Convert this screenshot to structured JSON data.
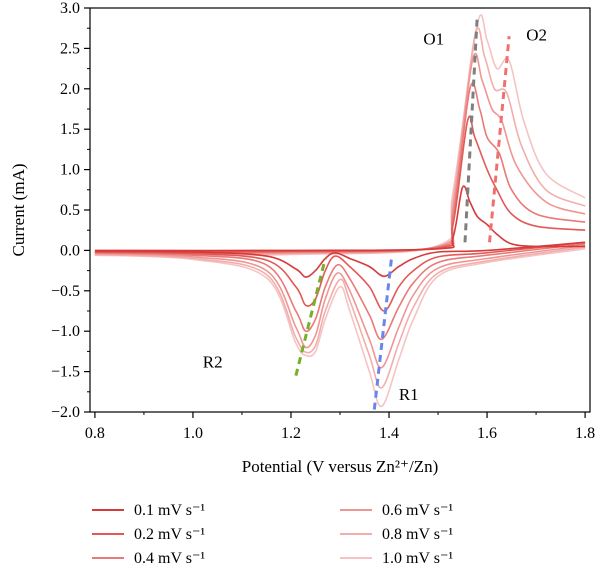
{
  "chart_data": {
    "type": "line",
    "xlabel": "Potential (V versus Zn²⁺/Zn)",
    "ylabel": "Current (mA)",
    "xlim": [
      0.79,
      1.81
    ],
    "ylim": [
      -2.0,
      3.0
    ],
    "xticks": [
      "0.8",
      "1.0",
      "1.2",
      "1.4",
      "1.6",
      "1.8"
    ],
    "xtick_values": [
      0.8,
      1.0,
      1.2,
      1.4,
      1.6,
      1.8
    ],
    "yticks": [
      "3.0",
      "2.5",
      "2.0",
      "1.5",
      "1.0",
      "0.5",
      "0.0",
      "−0.5",
      "−1.0",
      "−1.5",
      "−2.0"
    ],
    "ytick_values": [
      3.0,
      2.5,
      2.0,
      1.5,
      1.0,
      0.5,
      0.0,
      -0.5,
      -1.0,
      -1.5,
      -2.0
    ],
    "legend_position": "bottom",
    "series": [
      {
        "name": "0.1 mV s⁻¹",
        "color": "#d63a3a",
        "anodic": [
          [
            0.8,
            0.0
          ],
          [
            1.2,
            0.0
          ],
          [
            1.5,
            0.02
          ],
          [
            1.53,
            0.15
          ],
          [
            1.55,
            0.78
          ],
          [
            1.565,
            0.6
          ],
          [
            1.58,
            0.42
          ],
          [
            1.6,
            0.32
          ],
          [
            1.62,
            0.2
          ],
          [
            1.65,
            0.08
          ],
          [
            1.7,
            0.05
          ],
          [
            1.8,
            0.05
          ]
        ],
        "cathodic": [
          [
            1.8,
            0.1
          ],
          [
            1.6,
            0.0
          ],
          [
            1.5,
            -0.02
          ],
          [
            1.45,
            -0.1
          ],
          [
            1.42,
            -0.2
          ],
          [
            1.39,
            -0.32
          ],
          [
            1.36,
            -0.2
          ],
          [
            1.32,
            -0.1
          ],
          [
            1.29,
            -0.03
          ],
          [
            1.27,
            -0.1
          ],
          [
            1.25,
            -0.25
          ],
          [
            1.23,
            -0.33
          ],
          [
            1.21,
            -0.23
          ],
          [
            1.15,
            -0.07
          ],
          [
            1.0,
            -0.02
          ],
          [
            0.8,
            -0.01
          ]
        ]
      },
      {
        "name": "0.2 mV s⁻¹",
        "color": "#e15a57",
        "anodic": [
          [
            0.8,
            -0.02
          ],
          [
            1.2,
            -0.01
          ],
          [
            1.5,
            0.03
          ],
          [
            1.53,
            0.3
          ],
          [
            1.56,
            1.6
          ],
          [
            1.575,
            1.4
          ],
          [
            1.6,
            1.0
          ],
          [
            1.62,
            0.75
          ],
          [
            1.65,
            0.45
          ],
          [
            1.7,
            0.3
          ],
          [
            1.8,
            0.25
          ]
        ],
        "cathodic": [
          [
            1.8,
            0.1
          ],
          [
            1.6,
            -0.03
          ],
          [
            1.5,
            -0.08
          ],
          [
            1.45,
            -0.25
          ],
          [
            1.42,
            -0.45
          ],
          [
            1.39,
            -0.75
          ],
          [
            1.36,
            -0.45
          ],
          [
            1.32,
            -0.2
          ],
          [
            1.29,
            -0.07
          ],
          [
            1.27,
            -0.25
          ],
          [
            1.25,
            -0.6
          ],
          [
            1.23,
            -0.68
          ],
          [
            1.21,
            -0.45
          ],
          [
            1.15,
            -0.12
          ],
          [
            1.0,
            -0.04
          ],
          [
            0.8,
            -0.02
          ]
        ]
      },
      {
        "name": "0.4 mV s⁻¹",
        "color": "#e87a78",
        "anodic": [
          [
            0.8,
            -0.03
          ],
          [
            1.2,
            -0.02
          ],
          [
            1.5,
            0.04
          ],
          [
            1.53,
            0.4
          ],
          [
            1.565,
            2.0
          ],
          [
            1.585,
            1.75
          ],
          [
            1.6,
            1.4
          ],
          [
            1.625,
            1.2
          ],
          [
            1.65,
            0.75
          ],
          [
            1.7,
            0.45
          ],
          [
            1.8,
            0.35
          ]
        ],
        "cathodic": [
          [
            1.8,
            0.08
          ],
          [
            1.6,
            -0.06
          ],
          [
            1.5,
            -0.15
          ],
          [
            1.45,
            -0.4
          ],
          [
            1.42,
            -0.7
          ],
          [
            1.385,
            -1.1
          ],
          [
            1.36,
            -0.8
          ],
          [
            1.32,
            -0.35
          ],
          [
            1.295,
            -0.18
          ],
          [
            1.27,
            -0.45
          ],
          [
            1.25,
            -0.85
          ],
          [
            1.23,
            -1.0
          ],
          [
            1.21,
            -0.75
          ],
          [
            1.15,
            -0.18
          ],
          [
            1.0,
            -0.06
          ],
          [
            0.8,
            -0.03
          ]
        ]
      },
      {
        "name": "0.6 mV s⁻¹",
        "color": "#ee9694",
        "anodic": [
          [
            0.8,
            -0.04
          ],
          [
            1.2,
            -0.03
          ],
          [
            1.5,
            0.05
          ],
          [
            1.53,
            0.5
          ],
          [
            1.57,
            2.35
          ],
          [
            1.59,
            2.1
          ],
          [
            1.61,
            1.75
          ],
          [
            1.63,
            1.6
          ],
          [
            1.66,
            1.05
          ],
          [
            1.72,
            0.6
          ],
          [
            1.8,
            0.45
          ]
        ],
        "cathodic": [
          [
            1.8,
            0.06
          ],
          [
            1.6,
            -0.1
          ],
          [
            1.5,
            -0.22
          ],
          [
            1.45,
            -0.55
          ],
          [
            1.42,
            -0.95
          ],
          [
            1.385,
            -1.45
          ],
          [
            1.36,
            -1.1
          ],
          [
            1.32,
            -0.5
          ],
          [
            1.295,
            -0.28
          ],
          [
            1.27,
            -0.6
          ],
          [
            1.25,
            -1.05
          ],
          [
            1.23,
            -1.2
          ],
          [
            1.21,
            -0.95
          ],
          [
            1.15,
            -0.25
          ],
          [
            1.0,
            -0.08
          ],
          [
            0.8,
            -0.04
          ]
        ]
      },
      {
        "name": "0.8 mV s⁻¹",
        "color": "#f2aeac",
        "anodic": [
          [
            0.8,
            -0.05
          ],
          [
            1.2,
            -0.04
          ],
          [
            1.5,
            0.05
          ],
          [
            1.53,
            0.6
          ],
          [
            1.575,
            2.65
          ],
          [
            1.595,
            2.4
          ],
          [
            1.615,
            2.0
          ],
          [
            1.64,
            1.95
          ],
          [
            1.67,
            1.3
          ],
          [
            1.72,
            0.75
          ],
          [
            1.8,
            0.55
          ]
        ],
        "cathodic": [
          [
            1.8,
            0.04
          ],
          [
            1.6,
            -0.13
          ],
          [
            1.5,
            -0.28
          ],
          [
            1.45,
            -0.7
          ],
          [
            1.42,
            -1.15
          ],
          [
            1.385,
            -1.7
          ],
          [
            1.36,
            -1.3
          ],
          [
            1.32,
            -0.62
          ],
          [
            1.3,
            -0.36
          ],
          [
            1.27,
            -0.75
          ],
          [
            1.25,
            -1.18
          ],
          [
            1.23,
            -1.26
          ],
          [
            1.21,
            -1.08
          ],
          [
            1.15,
            -0.3
          ],
          [
            1.0,
            -0.1
          ],
          [
            0.8,
            -0.05
          ]
        ]
      },
      {
        "name": "1.0 mV s⁻¹",
        "color": "#f5c4c2",
        "anodic": [
          [
            0.8,
            -0.06
          ],
          [
            1.2,
            -0.05
          ],
          [
            1.5,
            0.06
          ],
          [
            1.53,
            0.7
          ],
          [
            1.58,
            2.8
          ],
          [
            1.6,
            2.6
          ],
          [
            1.62,
            2.25
          ],
          [
            1.645,
            2.35
          ],
          [
            1.675,
            1.6
          ],
          [
            1.72,
            0.95
          ],
          [
            1.8,
            0.65
          ]
        ],
        "cathodic": [
          [
            1.8,
            0.02
          ],
          [
            1.6,
            -0.15
          ],
          [
            1.5,
            -0.32
          ],
          [
            1.45,
            -0.85
          ],
          [
            1.42,
            -1.35
          ],
          [
            1.385,
            -1.93
          ],
          [
            1.36,
            -1.5
          ],
          [
            1.32,
            -0.75
          ],
          [
            1.3,
            -0.45
          ],
          [
            1.27,
            -0.85
          ],
          [
            1.25,
            -1.25
          ],
          [
            1.23,
            -1.3
          ],
          [
            1.21,
            -1.15
          ],
          [
            1.15,
            -0.34
          ],
          [
            1.0,
            -0.11
          ],
          [
            0.8,
            -0.06
          ]
        ]
      }
    ],
    "guide_lines": [
      {
        "name": "o1-trend",
        "color": "#7f7f7f",
        "from": [
          1.555,
          0.1
        ],
        "to": [
          1.58,
          2.9
        ]
      },
      {
        "name": "o2-trend",
        "color": "#f07070",
        "from": [
          1.605,
          0.1
        ],
        "to": [
          1.645,
          2.65
        ]
      },
      {
        "name": "r1-trend",
        "color": "#6b86e8",
        "from": [
          1.37,
          -1.97
        ],
        "to": [
          1.405,
          -0.1
        ]
      },
      {
        "name": "r2-trend",
        "color": "#76b02a",
        "from": [
          1.21,
          -1.55
        ],
        "to": [
          1.27,
          -0.1
        ]
      }
    ],
    "annotations": [
      {
        "text": "O1",
        "x": 1.47,
        "y": 2.55
      },
      {
        "text": "O2",
        "x": 1.68,
        "y": 2.6
      },
      {
        "text": "R1",
        "x": 1.42,
        "y": -1.85
      },
      {
        "text": "R2",
        "x": 1.02,
        "y": -1.45
      }
    ]
  }
}
